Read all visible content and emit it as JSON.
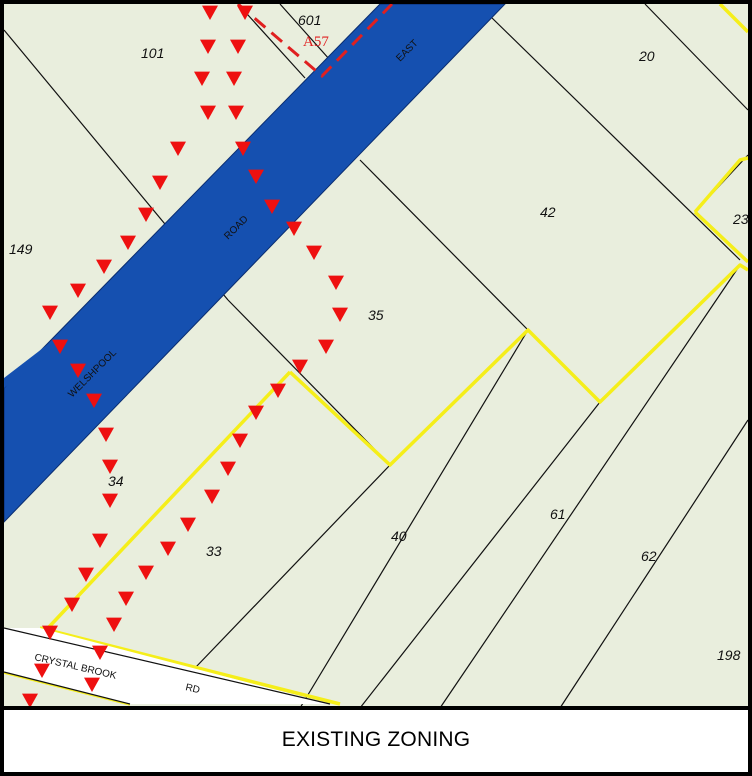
{
  "caption": "EXISTING ZONING",
  "colors": {
    "land": "#e9eedd",
    "road_reserve": "#1550b0",
    "lot_line": "#111111",
    "zone_boundary": "#f5ee1a",
    "route_marker": "#ee1010",
    "frame": "#000000"
  },
  "lots": {
    "l601": "601",
    "l101": "101",
    "l20": "20",
    "l149": "149",
    "l42": "42",
    "l23": "23",
    "l35": "35",
    "l34": "34",
    "l33": "33",
    "l40": "40",
    "l61": "61",
    "l62": "62",
    "l198": "198"
  },
  "roads": {
    "east": "EAST",
    "road": "ROAD",
    "welshpool": "WELSHPOOL",
    "crystal_brook": "CRYSTAL BROOK",
    "rd": "RD"
  },
  "tag": "A57",
  "route": {
    "marker_shape": "triangle",
    "marker_count": 52
  }
}
